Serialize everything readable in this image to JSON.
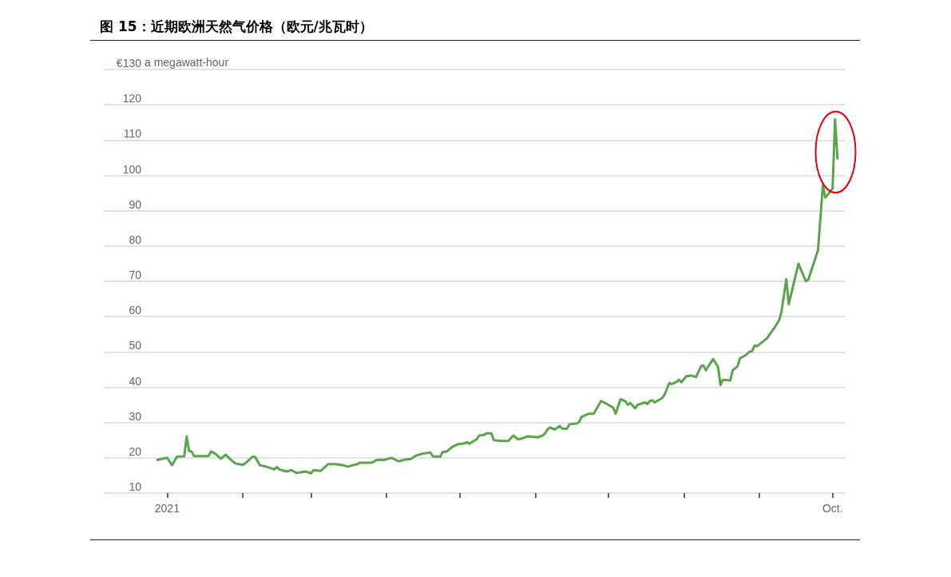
{
  "chart_data": {
    "type": "line",
    "title": "图 15：近期欧洲天然气价格（欧元/兆瓦时）",
    "ylabel": "a megawatt-hour",
    "x": [
      "2020-12-28",
      "2021-01-01",
      "2021-01-03",
      "2021-01-05",
      "2021-01-08",
      "2021-01-09",
      "2021-01-10",
      "2021-01-11",
      "2021-01-12",
      "2021-01-18",
      "2021-01-19",
      "2021-01-21",
      "2021-01-23",
      "2021-01-25",
      "2021-01-27",
      "2021-01-29",
      "2021-02-01",
      "2021-02-02",
      "2021-02-05",
      "2021-02-06",
      "2021-02-08",
      "2021-02-10",
      "2021-02-14",
      "2021-02-15",
      "2021-02-16",
      "2021-02-19",
      "2021-02-21",
      "2021-02-23",
      "2021-02-27",
      "2021-03-01",
      "2021-03-02",
      "2021-03-05",
      "2021-03-08",
      "2021-03-11",
      "2021-03-14",
      "2021-03-16",
      "2021-03-20",
      "2021-03-21",
      "2021-03-26",
      "2021-03-28",
      "2021-03-31",
      "2021-04-03",
      "2021-04-06",
      "2021-04-08",
      "2021-04-11",
      "2021-04-13",
      "2021-04-16",
      "2021-04-19",
      "2021-04-20",
      "2021-04-23",
      "2021-04-24",
      "2021-04-26",
      "2021-04-28",
      "2021-04-30",
      "2021-05-03",
      "2021-05-04",
      "2021-05-05",
      "2021-05-08",
      "2021-05-09",
      "2021-05-11",
      "2021-05-12",
      "2021-05-14",
      "2021-05-15",
      "2021-05-18",
      "2021-05-21",
      "2021-05-23",
      "2021-05-25",
      "2021-05-28",
      "2021-05-29",
      "2021-06-02",
      "2021-06-04",
      "2021-06-05",
      "2021-06-06",
      "2021-06-07",
      "2021-06-09",
      "2021-06-11",
      "2021-06-12",
      "2021-06-14",
      "2021-06-15",
      "2021-06-18",
      "2021-06-19",
      "2021-06-20",
      "2021-06-23",
      "2021-06-25",
      "2021-06-28",
      "2021-06-30",
      "2021-07-03",
      "2021-07-04",
      "2021-07-06",
      "2021-07-08",
      "2021-07-09",
      "2021-07-10",
      "2021-07-12",
      "2021-07-13",
      "2021-07-16",
      "2021-07-17",
      "2021-07-18",
      "2021-07-19",
      "2021-07-20",
      "2021-07-23",
      "2021-07-24",
      "2021-07-26",
      "2021-07-27",
      "2021-07-29",
      "2021-07-30",
      "2021-07-31",
      "2021-08-02",
      "2021-08-04",
      "2021-08-06",
      "2021-08-08",
      "2021-08-09",
      "2021-08-10",
      "2021-08-13",
      "2021-08-15",
      "2021-08-16",
      "2021-08-17",
      "2021-08-20",
      "2021-08-21",
      "2021-08-23",
      "2021-08-24",
      "2021-08-26",
      "2021-08-28",
      "2021-08-29",
      "2021-08-30",
      "2021-08-31",
      "2021-09-02",
      "2021-09-04",
      "2021-09-07",
      "2021-09-09",
      "2021-09-10",
      "2021-09-12",
      "2021-09-13",
      "2021-09-17",
      "2021-09-20",
      "2021-09-21",
      "2021-09-25",
      "2021-09-27",
      "2021-09-28",
      "2021-10-01",
      "2021-10-02",
      "2021-10-03"
    ],
    "values": [
      19.4,
      20.0,
      17.9,
      20.3,
      20.4,
      26.1,
      21.9,
      21.8,
      20.5,
      20.5,
      21.8,
      21.0,
      19.7,
      20.9,
      19.5,
      18.4,
      18.0,
      18.4,
      20.3,
      20.3,
      17.9,
      17.6,
      16.7,
      17.4,
      16.7,
      16.1,
      16.5,
      15.7,
      16.1,
      15.6,
      16.5,
      16.3,
      18.2,
      18.2,
      17.9,
      17.5,
      18.2,
      18.6,
      18.6,
      19.4,
      19.4,
      20.0,
      19.0,
      19.4,
      19.7,
      20.6,
      21.2,
      21.5,
      20.4,
      20.3,
      21.6,
      21.9,
      23.1,
      23.8,
      24.1,
      24.4,
      24.0,
      25.3,
      26.3,
      26.5,
      26.9,
      26.9,
      25.0,
      24.8,
      24.8,
      26.3,
      25.2,
      25.8,
      26.1,
      25.8,
      26.3,
      26.9,
      28.0,
      28.6,
      28.0,
      29.0,
      28.3,
      28.2,
      29.5,
      29.7,
      30.1,
      31.6,
      32.5,
      32.5,
      36.1,
      35.4,
      34.2,
      32.5,
      36.6,
      36.0,
      35.0,
      35.5,
      34.0,
      35.0,
      35.7,
      35.2,
      36.1,
      36.3,
      35.7,
      36.9,
      37.8,
      41.2,
      40.9,
      41.5,
      42.1,
      41.4,
      43.1,
      43.3,
      42.9,
      45.9,
      46.2,
      44.8,
      48.0,
      45.7,
      40.6,
      42.1,
      41.9,
      44.8,
      45.9,
      48.2,
      48.9,
      50.1,
      50.2,
      51.8,
      51.6,
      52.7,
      53.8,
      56.7,
      58.9,
      61.3,
      70.6,
      63.5,
      75.0,
      70.0,
      70.4,
      78.8,
      97.2,
      93.7,
      96.3,
      115.9,
      104.8
    ],
    "color": "#5aa54b",
    "line_style": "solid",
    "marker": "none",
    "xlim": [
      "2020-12-06",
      "2021-10-06"
    ],
    "xticks": [
      {
        "value": "2021-01-01",
        "label": "2021"
      },
      {
        "value": "2021-02-01",
        "label": null
      },
      {
        "value": "2021-03-01",
        "label": null
      },
      {
        "value": "2021-04-01",
        "label": null
      },
      {
        "value": "2021-05-01",
        "label": null
      },
      {
        "value": "2021-06-01",
        "label": null
      },
      {
        "value": "2021-07-01",
        "label": null
      },
      {
        "value": "2021-08-01",
        "label": null
      },
      {
        "value": "2021-09-01",
        "label": null
      },
      {
        "value": "2021-10-01",
        "label": "Oct."
      }
    ],
    "ylim": [
      10,
      130
    ],
    "yticks": [
      10,
      20,
      30,
      40,
      50,
      60,
      70,
      80,
      90,
      100,
      110,
      120,
      {
        "value": 130,
        "label": "€130"
      }
    ],
    "grid": "y"
  }
}
